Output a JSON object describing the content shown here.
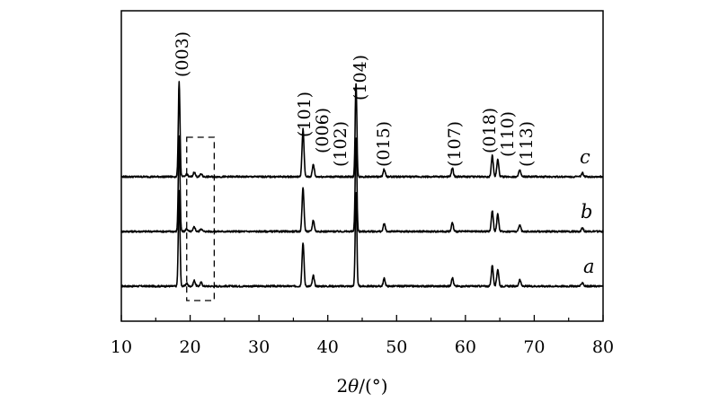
{
  "chart_data": {
    "type": "line",
    "xlabel": {
      "prefix": "2",
      "symbol": "θ",
      "unit": "/(°)"
    },
    "ylabel": "",
    "xlim": [
      10,
      80
    ],
    "xticks": [
      10,
      20,
      30,
      40,
      50,
      60,
      70,
      80
    ],
    "y_ticks_shown": false,
    "grid": false,
    "legend": "none",
    "series": [
      {
        "name": "a",
        "peaks": [
          {
            "x": 18.4,
            "h": 1.0
          },
          {
            "x": 19.5,
            "h": 0.03
          },
          {
            "x": 20.6,
            "h": 0.06
          },
          {
            "x": 21.6,
            "h": 0.04
          },
          {
            "x": 36.4,
            "h": 0.46
          },
          {
            "x": 37.9,
            "h": 0.11
          },
          {
            "x": 44.1,
            "h": 0.98
          },
          {
            "x": 48.2,
            "h": 0.08
          },
          {
            "x": 58.1,
            "h": 0.09
          },
          {
            "x": 63.9,
            "h": 0.22
          },
          {
            "x": 64.7,
            "h": 0.18
          },
          {
            "x": 67.9,
            "h": 0.07
          },
          {
            "x": 77.0,
            "h": 0.04
          }
        ]
      },
      {
        "name": "b",
        "peaks": [
          {
            "x": 18.4,
            "h": 1.0
          },
          {
            "x": 19.5,
            "h": 0.03
          },
          {
            "x": 20.6,
            "h": 0.05
          },
          {
            "x": 21.6,
            "h": 0.03
          },
          {
            "x": 36.4,
            "h": 0.46
          },
          {
            "x": 37.9,
            "h": 0.12
          },
          {
            "x": 44.1,
            "h": 0.98
          },
          {
            "x": 48.2,
            "h": 0.08
          },
          {
            "x": 58.1,
            "h": 0.09
          },
          {
            "x": 63.9,
            "h": 0.22
          },
          {
            "x": 64.7,
            "h": 0.18
          },
          {
            "x": 67.9,
            "h": 0.07
          },
          {
            "x": 77.0,
            "h": 0.04
          }
        ]
      },
      {
        "name": "c",
        "peaks": [
          {
            "x": 18.4,
            "h": 1.0
          },
          {
            "x": 19.5,
            "h": 0.03
          },
          {
            "x": 20.6,
            "h": 0.05
          },
          {
            "x": 21.6,
            "h": 0.03
          },
          {
            "x": 36.4,
            "h": 0.5
          },
          {
            "x": 37.9,
            "h": 0.13
          },
          {
            "x": 44.1,
            "h": 0.98
          },
          {
            "x": 48.2,
            "h": 0.08
          },
          {
            "x": 58.1,
            "h": 0.09
          },
          {
            "x": 63.9,
            "h": 0.22
          },
          {
            "x": 64.7,
            "h": 0.18
          },
          {
            "x": 67.9,
            "h": 0.07
          },
          {
            "x": 77.0,
            "h": 0.04
          }
        ]
      }
    ],
    "peak_labels": [
      {
        "text": "(003)",
        "x": 18.4
      },
      {
        "text": "(101)",
        "x": 36.4
      },
      {
        "text": "(006)",
        "x": 37.9
      },
      {
        "text": "(102)",
        "x": 38.6
      },
      {
        "text": "(104)",
        "x": 44.1
      },
      {
        "text": "(015)",
        "x": 48.2
      },
      {
        "text": "(107)",
        "x": 58.1
      },
      {
        "text": "(018)",
        "x": 63.9
      },
      {
        "text": "(110)",
        "x": 64.7
      },
      {
        "text": "(113)",
        "x": 67.9
      }
    ],
    "highlight_region": {
      "x_range": [
        19.5,
        23.5
      ],
      "style": "dashed"
    }
  }
}
